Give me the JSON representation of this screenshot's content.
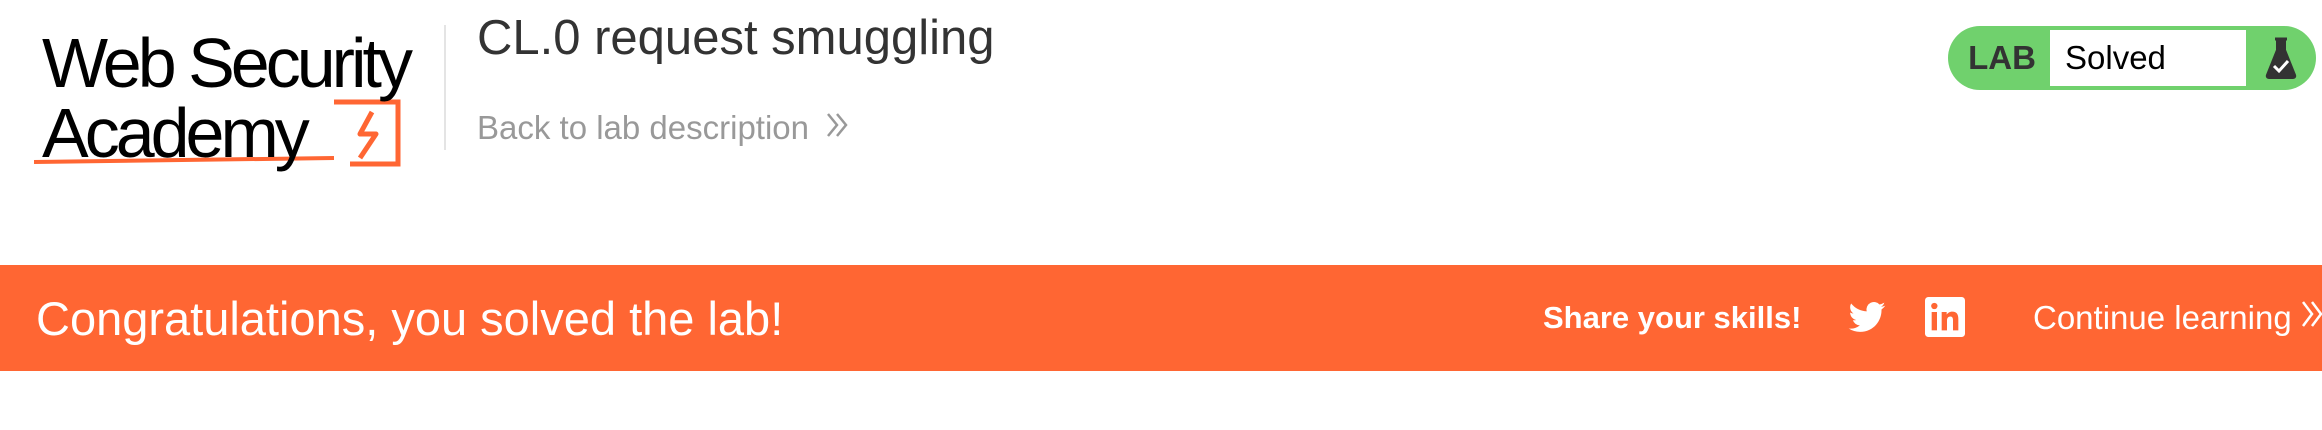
{
  "header": {
    "logo": {
      "line1": "Web Security",
      "line2": "Academy"
    },
    "lab_title": "CL.0 request smuggling",
    "back_link": "Back to lab description",
    "status": {
      "lab_label": "LAB",
      "value": "Solved",
      "pill_color": "#70d16d"
    }
  },
  "banner": {
    "message": "Congratulations, you solved the lab!",
    "share_label": "Share your skills!",
    "continue_label": "Continue learning",
    "background": "#ff6633",
    "icons": [
      "twitter-icon",
      "linkedin-icon"
    ]
  },
  "colors": {
    "brand_orange": "#ff6633",
    "solved_green": "#70d16d",
    "title_text": "#333333",
    "muted_text": "#999999"
  }
}
